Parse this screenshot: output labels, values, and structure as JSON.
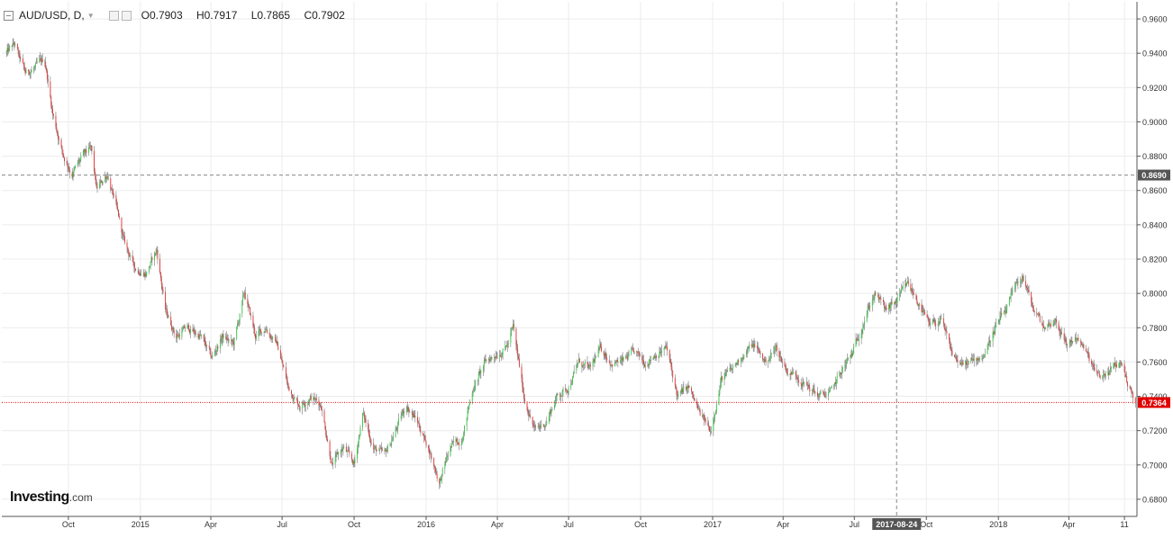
{
  "header": {
    "symbol": "AUD/USD, D,",
    "open_label": "O",
    "open": "0.7903",
    "high_label": "H",
    "high": "0.7917",
    "low_label": "L",
    "low": "0.7865",
    "close_label": "C",
    "close": "0.7902"
  },
  "logo": {
    "main": "Investing",
    "suffix": ".com"
  },
  "crosshair": {
    "price": "0.8690",
    "date": "2017-08-24"
  },
  "current_price": {
    "value": "0.7364",
    "color": "#e00000"
  },
  "colors": {
    "up": "#2ecc40",
    "down": "#e83030",
    "wick": "#777777",
    "grid": "#ececec"
  },
  "chart_data": {
    "type": "candlestick",
    "symbol": "AUD/USD",
    "timeframe": "D",
    "ylim": [
      0.67,
      0.97
    ],
    "y_ticks": [
      "0.6800",
      "0.7000",
      "0.7200",
      "0.7400",
      "0.7600",
      "0.7800",
      "0.8000",
      "0.8200",
      "0.8400",
      "0.8600",
      "0.8800",
      "0.9000",
      "0.9200",
      "0.9400",
      "0.9600"
    ],
    "x_ticks": [
      {
        "label": "Oct",
        "date": "2014-10"
      },
      {
        "label": "2015",
        "date": "2015-01"
      },
      {
        "label": "Apr",
        "date": "2015-04"
      },
      {
        "label": "Jul",
        "date": "2015-07"
      },
      {
        "label": "Oct",
        "date": "2015-10"
      },
      {
        "label": "2016",
        "date": "2016-01"
      },
      {
        "label": "Apr",
        "date": "2016-04"
      },
      {
        "label": "Jul",
        "date": "2016-07"
      },
      {
        "label": "Oct",
        "date": "2016-10"
      },
      {
        "label": "2017",
        "date": "2017-01"
      },
      {
        "label": "Apr",
        "date": "2017-04"
      },
      {
        "label": "Jul",
        "date": "2017-07"
      },
      {
        "label": "Oct",
        "date": "2017-10"
      },
      {
        "label": "2018",
        "date": "2018-01"
      },
      {
        "label": "Apr",
        "date": "2018-04"
      },
      {
        "label": "11",
        "date": "2018-06-11"
      }
    ],
    "price_path": [
      [
        "2014-07-14",
        0.94
      ],
      [
        "2014-07-24",
        0.945
      ],
      [
        "2014-08-07",
        0.928
      ],
      [
        "2014-08-21",
        0.932
      ],
      [
        "2014-09-01",
        0.936
      ],
      [
        "2014-09-11",
        0.905
      ],
      [
        "2014-09-25",
        0.88
      ],
      [
        "2014-10-06",
        0.87
      ],
      [
        "2014-10-20",
        0.88
      ],
      [
        "2014-10-30",
        0.884
      ],
      [
        "2014-11-06",
        0.86
      ],
      [
        "2014-11-20",
        0.87
      ],
      [
        "2014-12-01",
        0.85
      ],
      [
        "2014-12-11",
        0.83
      ],
      [
        "2014-12-25",
        0.815
      ],
      [
        "2015-01-08",
        0.812
      ],
      [
        "2015-01-22",
        0.825
      ],
      [
        "2015-02-02",
        0.79
      ],
      [
        "2015-02-16",
        0.775
      ],
      [
        "2015-03-01",
        0.78
      ],
      [
        "2015-03-19",
        0.775
      ],
      [
        "2015-04-02",
        0.762
      ],
      [
        "2015-04-16",
        0.775
      ],
      [
        "2015-04-30",
        0.77
      ],
      [
        "2015-05-14",
        0.8
      ],
      [
        "2015-05-28",
        0.775
      ],
      [
        "2015-06-11",
        0.78
      ],
      [
        "2015-06-25",
        0.77
      ],
      [
        "2015-07-09",
        0.745
      ],
      [
        "2015-07-23",
        0.735
      ],
      [
        "2015-08-06",
        0.74
      ],
      [
        "2015-08-20",
        0.735
      ],
      [
        "2015-09-03",
        0.7
      ],
      [
        "2015-09-17",
        0.71
      ],
      [
        "2015-10-01",
        0.7
      ],
      [
        "2015-10-12",
        0.73
      ],
      [
        "2015-10-26",
        0.71
      ],
      [
        "2015-11-09",
        0.705
      ],
      [
        "2015-11-23",
        0.72
      ],
      [
        "2015-12-07",
        0.735
      ],
      [
        "2015-12-21",
        0.725
      ],
      [
        "2016-01-04",
        0.71
      ],
      [
        "2016-01-18",
        0.69
      ],
      [
        "2016-02-01",
        0.71
      ],
      [
        "2016-02-15",
        0.715
      ],
      [
        "2016-03-01",
        0.745
      ],
      [
        "2016-03-17",
        0.76
      ],
      [
        "2016-03-31",
        0.765
      ],
      [
        "2016-04-14",
        0.77
      ],
      [
        "2016-04-21",
        0.78
      ],
      [
        "2016-05-05",
        0.74
      ],
      [
        "2016-05-19",
        0.72
      ],
      [
        "2016-06-02",
        0.725
      ],
      [
        "2016-06-16",
        0.74
      ],
      [
        "2016-06-30",
        0.745
      ],
      [
        "2016-07-14",
        0.76
      ],
      [
        "2016-07-28",
        0.755
      ],
      [
        "2016-08-11",
        0.768
      ],
      [
        "2016-08-25",
        0.76
      ],
      [
        "2016-09-08",
        0.76
      ],
      [
        "2016-09-22",
        0.765
      ],
      [
        "2016-10-06",
        0.76
      ],
      [
        "2016-10-20",
        0.765
      ],
      [
        "2016-11-03",
        0.768
      ],
      [
        "2016-11-17",
        0.74
      ],
      [
        "2016-12-01",
        0.745
      ],
      [
        "2016-12-15",
        0.73
      ],
      [
        "2016-12-29",
        0.72
      ],
      [
        "2017-01-12",
        0.75
      ],
      [
        "2017-01-26",
        0.755
      ],
      [
        "2017-02-09",
        0.765
      ],
      [
        "2017-02-23",
        0.77
      ],
      [
        "2017-03-09",
        0.76
      ],
      [
        "2017-03-23",
        0.768
      ],
      [
        "2017-04-06",
        0.755
      ],
      [
        "2017-04-20",
        0.752
      ],
      [
        "2017-05-04",
        0.745
      ],
      [
        "2017-05-18",
        0.74
      ],
      [
        "2017-06-01",
        0.742
      ],
      [
        "2017-06-15",
        0.755
      ],
      [
        "2017-06-29",
        0.765
      ],
      [
        "2017-07-13",
        0.785
      ],
      [
        "2017-07-27",
        0.8
      ],
      [
        "2017-08-10",
        0.79
      ],
      [
        "2017-08-24",
        0.795
      ],
      [
        "2017-09-07",
        0.805
      ],
      [
        "2017-09-21",
        0.795
      ],
      [
        "2017-10-05",
        0.78
      ],
      [
        "2017-10-19",
        0.785
      ],
      [
        "2017-11-02",
        0.765
      ],
      [
        "2017-11-16",
        0.758
      ],
      [
        "2017-11-30",
        0.76
      ],
      [
        "2017-12-14",
        0.765
      ],
      [
        "2017-12-28",
        0.78
      ],
      [
        "2018-01-11",
        0.79
      ],
      [
        "2018-01-25",
        0.805
      ],
      [
        "2018-02-01",
        0.81
      ],
      [
        "2018-02-15",
        0.79
      ],
      [
        "2018-03-01",
        0.78
      ],
      [
        "2018-03-15",
        0.785
      ],
      [
        "2018-03-29",
        0.77
      ],
      [
        "2018-04-12",
        0.775
      ],
      [
        "2018-04-26",
        0.762
      ],
      [
        "2018-05-10",
        0.75
      ],
      [
        "2018-05-24",
        0.755
      ],
      [
        "2018-06-07",
        0.76
      ],
      [
        "2018-06-14",
        0.75
      ],
      [
        "2018-06-25",
        0.736
      ]
    ],
    "reference_lines": [
      {
        "kind": "crosshair-price",
        "y": 0.869
      },
      {
        "kind": "crosshair-date",
        "x": "2017-08-24"
      },
      {
        "kind": "current-price",
        "y": 0.7364
      }
    ],
    "grid": true
  }
}
